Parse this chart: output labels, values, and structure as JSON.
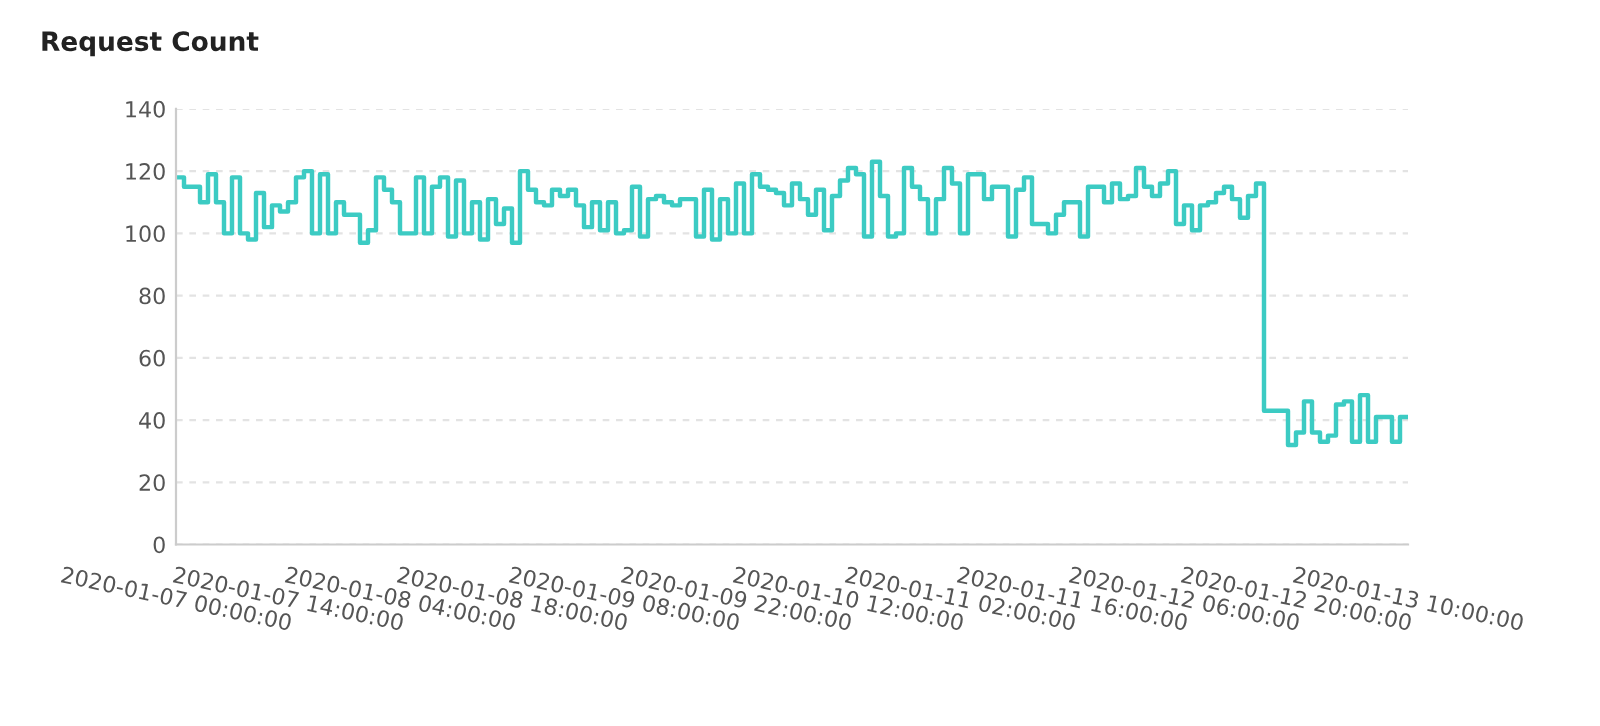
{
  "chart_data": {
    "type": "step",
    "title": "Request Count",
    "x": [
      "2020-01-07T00:00",
      "2020-01-07T01:00",
      "2020-01-07T02:00",
      "2020-01-07T03:00",
      "2020-01-07T04:00",
      "2020-01-07T05:00",
      "2020-01-07T06:00",
      "2020-01-07T07:00",
      "2020-01-07T08:00",
      "2020-01-07T09:00",
      "2020-01-07T10:00",
      "2020-01-07T11:00",
      "2020-01-07T12:00",
      "2020-01-07T13:00",
      "2020-01-07T14:00",
      "2020-01-07T15:00",
      "2020-01-07T16:00",
      "2020-01-07T17:00",
      "2020-01-07T18:00",
      "2020-01-07T19:00",
      "2020-01-07T20:00",
      "2020-01-07T21:00",
      "2020-01-07T22:00",
      "2020-01-07T23:00",
      "2020-01-08T00:00",
      "2020-01-08T01:00",
      "2020-01-08T02:00",
      "2020-01-08T03:00",
      "2020-01-08T04:00",
      "2020-01-08T05:00",
      "2020-01-08T06:00",
      "2020-01-08T07:00",
      "2020-01-08T08:00",
      "2020-01-08T09:00",
      "2020-01-08T10:00",
      "2020-01-08T11:00",
      "2020-01-08T12:00",
      "2020-01-08T13:00",
      "2020-01-08T14:00",
      "2020-01-08T15:00",
      "2020-01-08T16:00",
      "2020-01-08T17:00",
      "2020-01-08T18:00",
      "2020-01-08T19:00",
      "2020-01-08T20:00",
      "2020-01-08T21:00",
      "2020-01-08T22:00",
      "2020-01-08T23:00",
      "2020-01-09T00:00",
      "2020-01-09T01:00",
      "2020-01-09T02:00",
      "2020-01-09T03:00",
      "2020-01-09T04:00",
      "2020-01-09T05:00",
      "2020-01-09T06:00",
      "2020-01-09T07:00",
      "2020-01-09T08:00",
      "2020-01-09T09:00",
      "2020-01-09T10:00",
      "2020-01-09T11:00",
      "2020-01-09T12:00",
      "2020-01-09T13:00",
      "2020-01-09T14:00",
      "2020-01-09T15:00",
      "2020-01-09T16:00",
      "2020-01-09T17:00",
      "2020-01-09T18:00",
      "2020-01-09T19:00",
      "2020-01-09T20:00",
      "2020-01-09T21:00",
      "2020-01-09T22:00",
      "2020-01-09T23:00",
      "2020-01-10T00:00",
      "2020-01-10T01:00",
      "2020-01-10T02:00",
      "2020-01-10T03:00",
      "2020-01-10T04:00",
      "2020-01-10T05:00",
      "2020-01-10T06:00",
      "2020-01-10T07:00",
      "2020-01-10T08:00",
      "2020-01-10T09:00",
      "2020-01-10T10:00",
      "2020-01-10T11:00",
      "2020-01-10T12:00",
      "2020-01-10T13:00",
      "2020-01-10T14:00",
      "2020-01-10T15:00",
      "2020-01-10T16:00",
      "2020-01-10T17:00",
      "2020-01-10T18:00",
      "2020-01-10T19:00",
      "2020-01-10T20:00",
      "2020-01-10T21:00",
      "2020-01-10T22:00",
      "2020-01-10T23:00",
      "2020-01-11T00:00",
      "2020-01-11T01:00",
      "2020-01-11T02:00",
      "2020-01-11T03:00",
      "2020-01-11T04:00",
      "2020-01-11T05:00",
      "2020-01-11T06:00",
      "2020-01-11T07:00",
      "2020-01-11T08:00",
      "2020-01-11T09:00",
      "2020-01-11T10:00",
      "2020-01-11T11:00",
      "2020-01-11T12:00",
      "2020-01-11T13:00",
      "2020-01-11T14:00",
      "2020-01-11T15:00",
      "2020-01-11T16:00",
      "2020-01-11T17:00",
      "2020-01-11T18:00",
      "2020-01-11T19:00",
      "2020-01-11T20:00",
      "2020-01-11T21:00",
      "2020-01-11T22:00",
      "2020-01-11T23:00",
      "2020-01-12T00:00",
      "2020-01-12T01:00",
      "2020-01-12T02:00",
      "2020-01-12T03:00",
      "2020-01-12T04:00",
      "2020-01-12T05:00",
      "2020-01-12T06:00",
      "2020-01-12T07:00",
      "2020-01-12T08:00",
      "2020-01-12T09:00",
      "2020-01-12T10:00",
      "2020-01-12T11:00",
      "2020-01-12T12:00",
      "2020-01-12T13:00",
      "2020-01-12T14:00",
      "2020-01-12T15:00",
      "2020-01-12T16:00",
      "2020-01-12T17:00",
      "2020-01-12T18:00",
      "2020-01-12T19:00",
      "2020-01-12T20:00",
      "2020-01-12T21:00",
      "2020-01-12T22:00",
      "2020-01-12T23:00",
      "2020-01-13T00:00",
      "2020-01-13T01:00",
      "2020-01-13T02:00",
      "2020-01-13T03:00",
      "2020-01-13T04:00",
      "2020-01-13T05:00",
      "2020-01-13T06:00",
      "2020-01-13T07:00",
      "2020-01-13T08:00",
      "2020-01-13T09:00",
      "2020-01-13T10:00"
    ],
    "series": [
      {
        "color": "#3ccbc3",
        "values": [
          118,
          115,
          115,
          110,
          119,
          110,
          100,
          118,
          100,
          98,
          113,
          102,
          109,
          107,
          110,
          118,
          120,
          100,
          119,
          100,
          110,
          106,
          106,
          97,
          101,
          118,
          114,
          110,
          100,
          100,
          118,
          100,
          115,
          118,
          99,
          117,
          100,
          110,
          98,
          111,
          103,
          108,
          97,
          120,
          114,
          110,
          109,
          114,
          112,
          114,
          109,
          102,
          110,
          101,
          110,
          100,
          101,
          115,
          99,
          111,
          112,
          110,
          109,
          111,
          111,
          99,
          114,
          98,
          111,
          100,
          116,
          100,
          119,
          115,
          114,
          113,
          109,
          116,
          111,
          106,
          114,
          101,
          112,
          117,
          121,
          119,
          99,
          123,
          112,
          99,
          100,
          121,
          115,
          111,
          100,
          111,
          121,
          116,
          100,
          119,
          119,
          111,
          115,
          115,
          99,
          114,
          118,
          103,
          103,
          100,
          106,
          110,
          110,
          99,
          115,
          115,
          110,
          116,
          111,
          112,
          121,
          115,
          112,
          116,
          120,
          103,
          109,
          101,
          109,
          110,
          113,
          115,
          111,
          105,
          112,
          116,
          43,
          43,
          43,
          32,
          36,
          46,
          36,
          33,
          35,
          45,
          46,
          33,
          48,
          33,
          41,
          41,
          33,
          41,
          41
        ]
      }
    ],
    "xlim": [
      "2020-01-07T00:00",
      "2020-01-13T10:00"
    ],
    "xticks": [
      {
        "value": "2020-01-07T00:00",
        "label": "2020-01-07 00:00:00"
      },
      {
        "value": "2020-01-07T14:00",
        "label": "2020-01-07 14:00:00"
      },
      {
        "value": "2020-01-08T04:00",
        "label": "2020-01-08 04:00:00"
      },
      {
        "value": "2020-01-08T18:00",
        "label": "2020-01-08 18:00:00"
      },
      {
        "value": "2020-01-09T08:00",
        "label": "2020-01-09 08:00:00"
      },
      {
        "value": "2020-01-09T22:00",
        "label": "2020-01-09 22:00:00"
      },
      {
        "value": "2020-01-10T12:00",
        "label": "2020-01-10 12:00:00"
      },
      {
        "value": "2020-01-11T02:00",
        "label": "2020-01-11 02:00:00"
      },
      {
        "value": "2020-01-11T16:00",
        "label": "2020-01-11 16:00:00"
      },
      {
        "value": "2020-01-12T06:00",
        "label": "2020-01-12 06:00:00"
      },
      {
        "value": "2020-01-12T20:00",
        "label": "2020-01-12 20:00:00"
      },
      {
        "value": "2020-01-13T10:00",
        "label": "2020-01-13 10:00:00"
      }
    ],
    "ylim": [
      0,
      140
    ],
    "yticks": [
      0,
      20,
      40,
      60,
      80,
      100,
      120,
      140
    ],
    "grid": "y"
  }
}
